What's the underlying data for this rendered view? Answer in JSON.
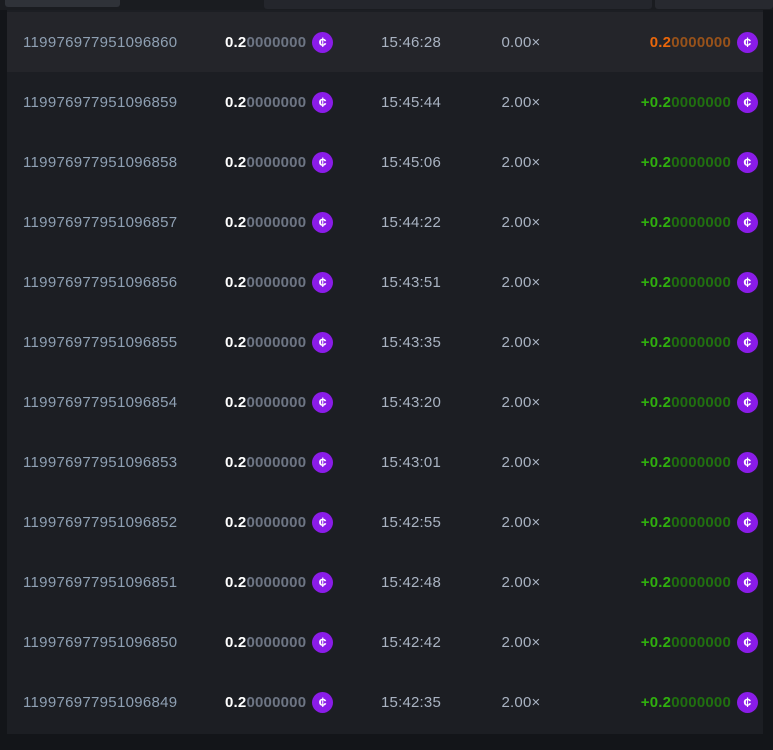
{
  "currency": {
    "symbol": "¢",
    "color": "#8a1ce8"
  },
  "header": {
    "left_control": "",
    "middle_control": "",
    "right_control": ""
  },
  "table": {
    "rows": [
      {
        "id": "119976977951096860",
        "bet_main": "0.2",
        "bet_zeros": "0000000",
        "time": "15:46:28",
        "multiplier": "0.00×",
        "payout_main": "0.2",
        "payout_zeros": "0000000",
        "result": "loss"
      },
      {
        "id": "119976977951096859",
        "bet_main": "0.2",
        "bet_zeros": "0000000",
        "time": "15:45:44",
        "multiplier": "2.00×",
        "payout_main": "+0.2",
        "payout_zeros": "0000000",
        "result": "win"
      },
      {
        "id": "119976977951096858",
        "bet_main": "0.2",
        "bet_zeros": "0000000",
        "time": "15:45:06",
        "multiplier": "2.00×",
        "payout_main": "+0.2",
        "payout_zeros": "0000000",
        "result": "win"
      },
      {
        "id": "119976977951096857",
        "bet_main": "0.2",
        "bet_zeros": "0000000",
        "time": "15:44:22",
        "multiplier": "2.00×",
        "payout_main": "+0.2",
        "payout_zeros": "0000000",
        "result": "win"
      },
      {
        "id": "119976977951096856",
        "bet_main": "0.2",
        "bet_zeros": "0000000",
        "time": "15:43:51",
        "multiplier": "2.00×",
        "payout_main": "+0.2",
        "payout_zeros": "0000000",
        "result": "win"
      },
      {
        "id": "119976977951096855",
        "bet_main": "0.2",
        "bet_zeros": "0000000",
        "time": "15:43:35",
        "multiplier": "2.00×",
        "payout_main": "+0.2",
        "payout_zeros": "0000000",
        "result": "win"
      },
      {
        "id": "119976977951096854",
        "bet_main": "0.2",
        "bet_zeros": "0000000",
        "time": "15:43:20",
        "multiplier": "2.00×",
        "payout_main": "+0.2",
        "payout_zeros": "0000000",
        "result": "win"
      },
      {
        "id": "119976977951096853",
        "bet_main": "0.2",
        "bet_zeros": "0000000",
        "time": "15:43:01",
        "multiplier": "2.00×",
        "payout_main": "+0.2",
        "payout_zeros": "0000000",
        "result": "win"
      },
      {
        "id": "119976977951096852",
        "bet_main": "0.2",
        "bet_zeros": "0000000",
        "time": "15:42:55",
        "multiplier": "2.00×",
        "payout_main": "+0.2",
        "payout_zeros": "0000000",
        "result": "win"
      },
      {
        "id": "119976977951096851",
        "bet_main": "0.2",
        "bet_zeros": "0000000",
        "time": "15:42:48",
        "multiplier": "2.00×",
        "payout_main": "+0.2",
        "payout_zeros": "0000000",
        "result": "win"
      },
      {
        "id": "119976977951096850",
        "bet_main": "0.2",
        "bet_zeros": "0000000",
        "time": "15:42:42",
        "multiplier": "2.00×",
        "payout_main": "+0.2",
        "payout_zeros": "0000000",
        "result": "win"
      },
      {
        "id": "119976977951096849",
        "bet_main": "0.2",
        "bet_zeros": "0000000",
        "time": "15:42:35",
        "multiplier": "2.00×",
        "payout_main": "+0.2",
        "payout_zeros": "0000000",
        "result": "win"
      }
    ]
  }
}
